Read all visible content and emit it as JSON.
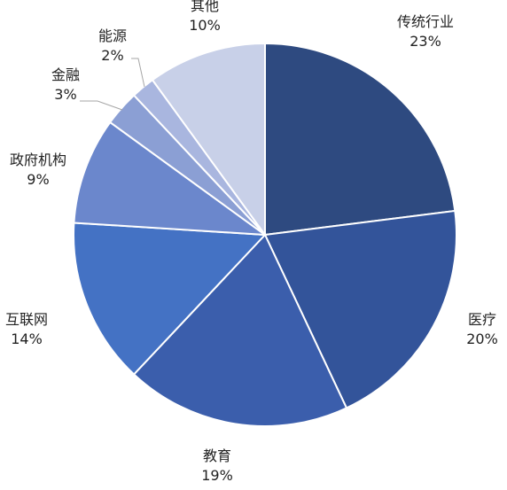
{
  "chart_data": {
    "type": "pie",
    "title": "",
    "start_angle_deg": 0,
    "direction": "clockwise",
    "legend": "none",
    "slices": [
      {
        "label": "传统行业",
        "value": 23,
        "display": "23%",
        "color": "#2e4a80"
      },
      {
        "label": "医疗",
        "value": 20,
        "display": "20%",
        "color": "#33549a"
      },
      {
        "label": "教育",
        "value": 19,
        "display": "19%",
        "color": "#3b5eac"
      },
      {
        "label": "互联网",
        "value": 14,
        "display": "14%",
        "color": "#4472c4"
      },
      {
        "label": "政府机构",
        "value": 9,
        "display": "9%",
        "color": "#6b87cc"
      },
      {
        "label": "金融",
        "value": 3,
        "display": "3%",
        "color": "#8b9fd4"
      },
      {
        "label": "能源",
        "value": 2,
        "display": "2%",
        "color": "#a9b6df"
      },
      {
        "label": "其他",
        "value": 10,
        "display": "10%",
        "color": "#c8d0e8"
      }
    ]
  }
}
